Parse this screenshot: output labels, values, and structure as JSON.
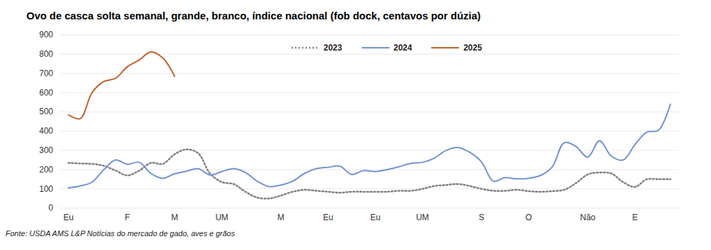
{
  "chart_data": {
    "type": "line",
    "title": "Ovo de casca solta semanal, grande, branco, índice nacional (fob dock, centavos por dúzia)",
    "caption": "Fonte: USDA AMS L&P Notícias do mercado de gado, aves e grãos",
    "categories": [
      "Eu",
      null,
      null,
      null,
      null,
      "F",
      null,
      null,
      null,
      "M",
      null,
      null,
      null,
      "UM",
      null,
      null,
      null,
      null,
      "M",
      null,
      null,
      null,
      "Eu",
      null,
      null,
      null,
      "Eu",
      null,
      null,
      null,
      "UM",
      null,
      null,
      null,
      null,
      "S",
      null,
      null,
      null,
      "O",
      null,
      null,
      null,
      null,
      "Não",
      null,
      null,
      null,
      "E",
      null,
      null,
      null
    ],
    "series": [
      {
        "name": "2023",
        "color": "#7f7f7f",
        "line_style": "dotted",
        "values": [
          235,
          232,
          230,
          220,
          195,
          170,
          195,
          235,
          230,
          280,
          305,
          285,
          180,
          135,
          125,
          85,
          55,
          50,
          65,
          85,
          95,
          90,
          85,
          80,
          85,
          85,
          85,
          85,
          90,
          90,
          100,
          115,
          120,
          125,
          115,
          100,
          90,
          90,
          95,
          88,
          85,
          88,
          95,
          130,
          175,
          185,
          180,
          135,
          110,
          150,
          150,
          150
        ]
      },
      {
        "name": "2024",
        "color": "#7191d4",
        "line_style": "solid",
        "values": [
          105,
          115,
          135,
          200,
          250,
          228,
          238,
          180,
          155,
          178,
          192,
          205,
          172,
          190,
          205,
          185,
          140,
          112,
          120,
          140,
          180,
          205,
          212,
          218,
          175,
          195,
          190,
          200,
          215,
          232,
          238,
          260,
          300,
          315,
          290,
          240,
          140,
          158,
          152,
          155,
          170,
          215,
          340,
          320,
          265,
          350,
          270,
          250,
          330,
          395,
          405,
          540
        ]
      },
      {
        "name": "2025",
        "color": "#c0602a",
        "line_style": "solid",
        "values": [
          485,
          465,
          600,
          658,
          675,
          735,
          770,
          812,
          780,
          685,
          null,
          null,
          null,
          null,
          null,
          null,
          null,
          null,
          null,
          null,
          null,
          null,
          null,
          null,
          null,
          null,
          null,
          null,
          null,
          null,
          null,
          null,
          null,
          null,
          null,
          null,
          null,
          null,
          null,
          null,
          null,
          null,
          null,
          null,
          null,
          null,
          null,
          null,
          null,
          null,
          null,
          null
        ]
      }
    ],
    "ylim": [
      0,
      900
    ],
    "yticks": [
      0,
      100,
      200,
      300,
      400,
      500,
      600,
      700,
      800,
      900
    ],
    "grid": true,
    "legend": "top"
  }
}
